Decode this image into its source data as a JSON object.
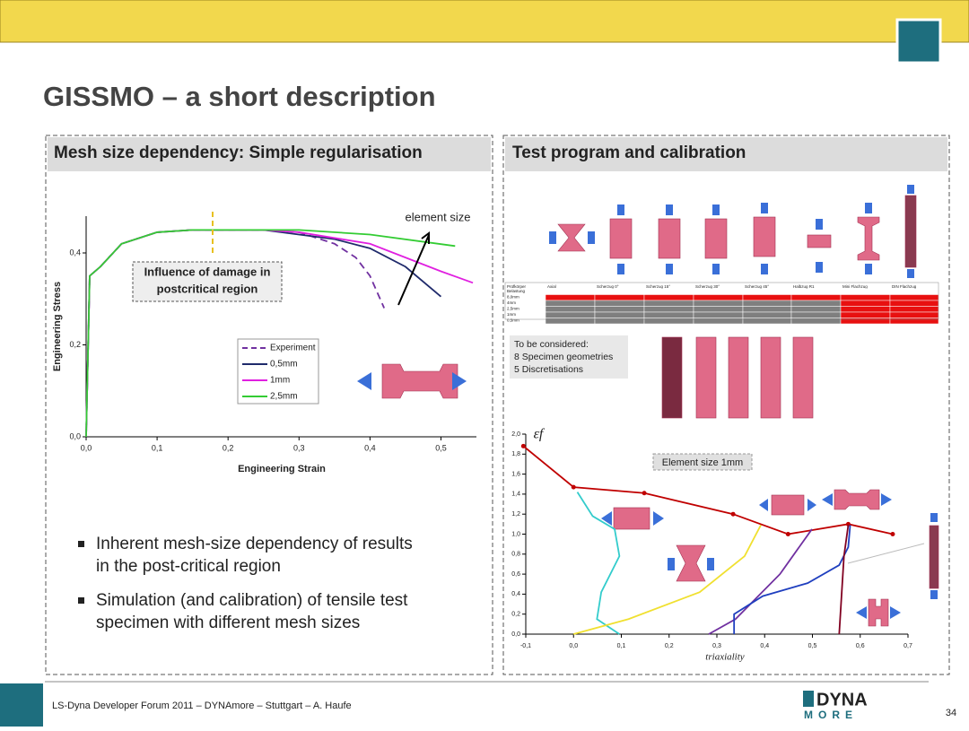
{
  "header": {
    "title": "GISSMO – a short description"
  },
  "left_panel": {
    "heading": "Mesh size dependency: Simple regularisation",
    "chart": {
      "type": "line",
      "xlabel": "Engineering Strain",
      "ylabel": "Engineering Stress",
      "xlim": [
        0,
        0.55
      ],
      "ylim": [
        0,
        0.48
      ],
      "xticks": [
        {
          "value": 0,
          "label": "0,0"
        },
        {
          "value": 0.1,
          "label": "0,1"
        },
        {
          "value": 0.2,
          "label": "0,2"
        },
        {
          "value": 0.3,
          "label": "0,3"
        },
        {
          "value": 0.4,
          "label": "0,4"
        },
        {
          "value": 0.5,
          "label": "0,5"
        }
      ],
      "yticks": [
        {
          "value": 0,
          "label": "0,0"
        },
        {
          "value": 0.2,
          "label": "0,2"
        },
        {
          "value": 0.4,
          "label": "0,4"
        }
      ],
      "legend": "center",
      "annotations": [
        "element size",
        "Influence of damage in",
        "postcritical region"
      ],
      "series": [
        {
          "name": "Experiment",
          "color": "#7030a0",
          "style": "dashed",
          "x": [
            0,
            0.005,
            0.02,
            0.05,
            0.1,
            0.15,
            0.2,
            0.25,
            0.3,
            0.35,
            0.38,
            0.4,
            0.42
          ],
          "values": [
            0,
            0.35,
            0.37,
            0.42,
            0.445,
            0.45,
            0.45,
            0.45,
            0.445,
            0.42,
            0.39,
            0.35,
            0.28
          ]
        },
        {
          "name": "0,5mm",
          "color": "#1f2a6b",
          "style": "solid",
          "x": [
            0,
            0.005,
            0.02,
            0.05,
            0.1,
            0.15,
            0.2,
            0.25,
            0.3,
            0.35,
            0.4,
            0.45,
            0.5
          ],
          "values": [
            0,
            0.35,
            0.37,
            0.42,
            0.445,
            0.45,
            0.45,
            0.45,
            0.44,
            0.43,
            0.41,
            0.37,
            0.305
          ]
        },
        {
          "name": "1mm",
          "color": "#e020e0",
          "style": "solid",
          "x": [
            0,
            0.005,
            0.02,
            0.05,
            0.1,
            0.15,
            0.2,
            0.25,
            0.3,
            0.4,
            0.5,
            0.545
          ],
          "values": [
            0,
            0.35,
            0.37,
            0.42,
            0.445,
            0.45,
            0.45,
            0.45,
            0.445,
            0.42,
            0.36,
            0.335
          ]
        },
        {
          "name": "2,5mm",
          "color": "#33cc33",
          "style": "solid",
          "x": [
            0,
            0.005,
            0.02,
            0.05,
            0.1,
            0.15,
            0.2,
            0.25,
            0.3,
            0.4,
            0.52
          ],
          "values": [
            0,
            0.35,
            0.37,
            0.42,
            0.445,
            0.45,
            0.45,
            0.45,
            0.45,
            0.44,
            0.415
          ]
        }
      ]
    },
    "bullets": [
      [
        "Inherent mesh-size dependency of results",
        "in the post-critical region"
      ],
      [
        "Simulation (and calibration) of tensile test",
        "specimen with different mesh sizes"
      ]
    ]
  },
  "right_panel": {
    "heading": "Test program and calibration",
    "table": {
      "header": [
        "Prüfkörper",
        "Axial",
        "Scherzug 0°",
        "Scherzug 15°",
        "Scherzug 30°",
        "Scherzug 45°",
        "Halbzug R1",
        "Mini Flachzug",
        "DIN Flachzug"
      ],
      "rows": [
        "Belastung",
        "8,0mm",
        "4mm",
        "2,5mm",
        "1mm",
        "0,5mm"
      ]
    },
    "note": [
      "To be considered:",
      "8 Specimen geometries",
      "5 Discretisations"
    ],
    "chart": {
      "type": "line",
      "xlabel": "triaxiality",
      "ylabel": "εf",
      "xlim": [
        -0.1,
        0.7
      ],
      "ylim": [
        0,
        2
      ],
      "xticks": [
        {
          "value": -0.1,
          "label": "-0,1"
        },
        {
          "value": 0,
          "label": "0,0"
        },
        {
          "value": 0.1,
          "label": "0,1"
        },
        {
          "value": 0.2,
          "label": "0,2"
        },
        {
          "value": 0.3,
          "label": "0,3"
        },
        {
          "value": 0.4,
          "label": "0,4"
        },
        {
          "value": 0.5,
          "label": "0,5"
        },
        {
          "value": 0.6,
          "label": "0,6"
        },
        {
          "value": 0.7,
          "label": "0,7"
        }
      ],
      "yticks": [
        {
          "value": 0,
          "label": "0,0"
        },
        {
          "value": 0.2,
          "label": "0,2"
        },
        {
          "value": 0.4,
          "label": "0,4"
        },
        {
          "value": 0.6,
          "label": "0,6"
        },
        {
          "value": 0.8,
          "label": "0,8"
        },
        {
          "value": 1,
          "label": "1,0"
        },
        {
          "value": 1.2,
          "label": "1,2"
        },
        {
          "value": 1.4,
          "label": "1,4"
        },
        {
          "value": 1.6,
          "label": "1,6"
        },
        {
          "value": 1.8,
          "label": "1,8"
        },
        {
          "value": 2,
          "label": "2,0"
        }
      ],
      "annotations": [
        "Element size 1mm"
      ],
      "series": [
        {
          "color": "#c00000",
          "style": "solid",
          "marker": true,
          "x": [
            -0.105,
            0,
            0.148,
            0.334,
            0.449,
            0.575,
            0.668
          ],
          "values": [
            1.88,
            1.47,
            1.41,
            1.2,
            1.0,
            1.1,
            1.0
          ]
        },
        {
          "color": "#33cccc",
          "style": "solid",
          "x": [
            0.008,
            0.04,
            0.086,
            0.096,
            0.058,
            0.049,
            0.096
          ],
          "values": [
            1.42,
            1.18,
            1.05,
            0.78,
            0.42,
            0.15,
            0
          ]
        },
        {
          "color": "#f0e030",
          "style": "solid",
          "x": [
            0,
            0.115,
            0.264,
            0.358,
            0.392
          ],
          "values": [
            0,
            0.15,
            0.42,
            0.78,
            1.09
          ]
        },
        {
          "color": "#7030a0",
          "style": "solid",
          "x": [
            0.283,
            0.339,
            0.432,
            0.499
          ],
          "values": [
            0,
            0.15,
            0.6,
            1.05
          ]
        },
        {
          "color": "#1f3fbf",
          "style": "solid",
          "x": [
            0.336,
            0.336,
            0.396,
            0.49,
            0.556,
            0.575,
            0.579
          ],
          "values": [
            0,
            0.2,
            0.38,
            0.51,
            0.69,
            0.87,
            1.09
          ]
        },
        {
          "color": "#800020",
          "style": "solid",
          "x": [
            0.556,
            0.566,
            0.575
          ],
          "values": [
            0,
            0.78,
            1.09
          ]
        }
      ]
    }
  },
  "footer": {
    "text": "LS-Dyna Developer Forum 2011 – DYNAmore – Stuttgart  –  A. Haufe",
    "logo": [
      "DYNA",
      "MORE"
    ],
    "page": "34"
  }
}
